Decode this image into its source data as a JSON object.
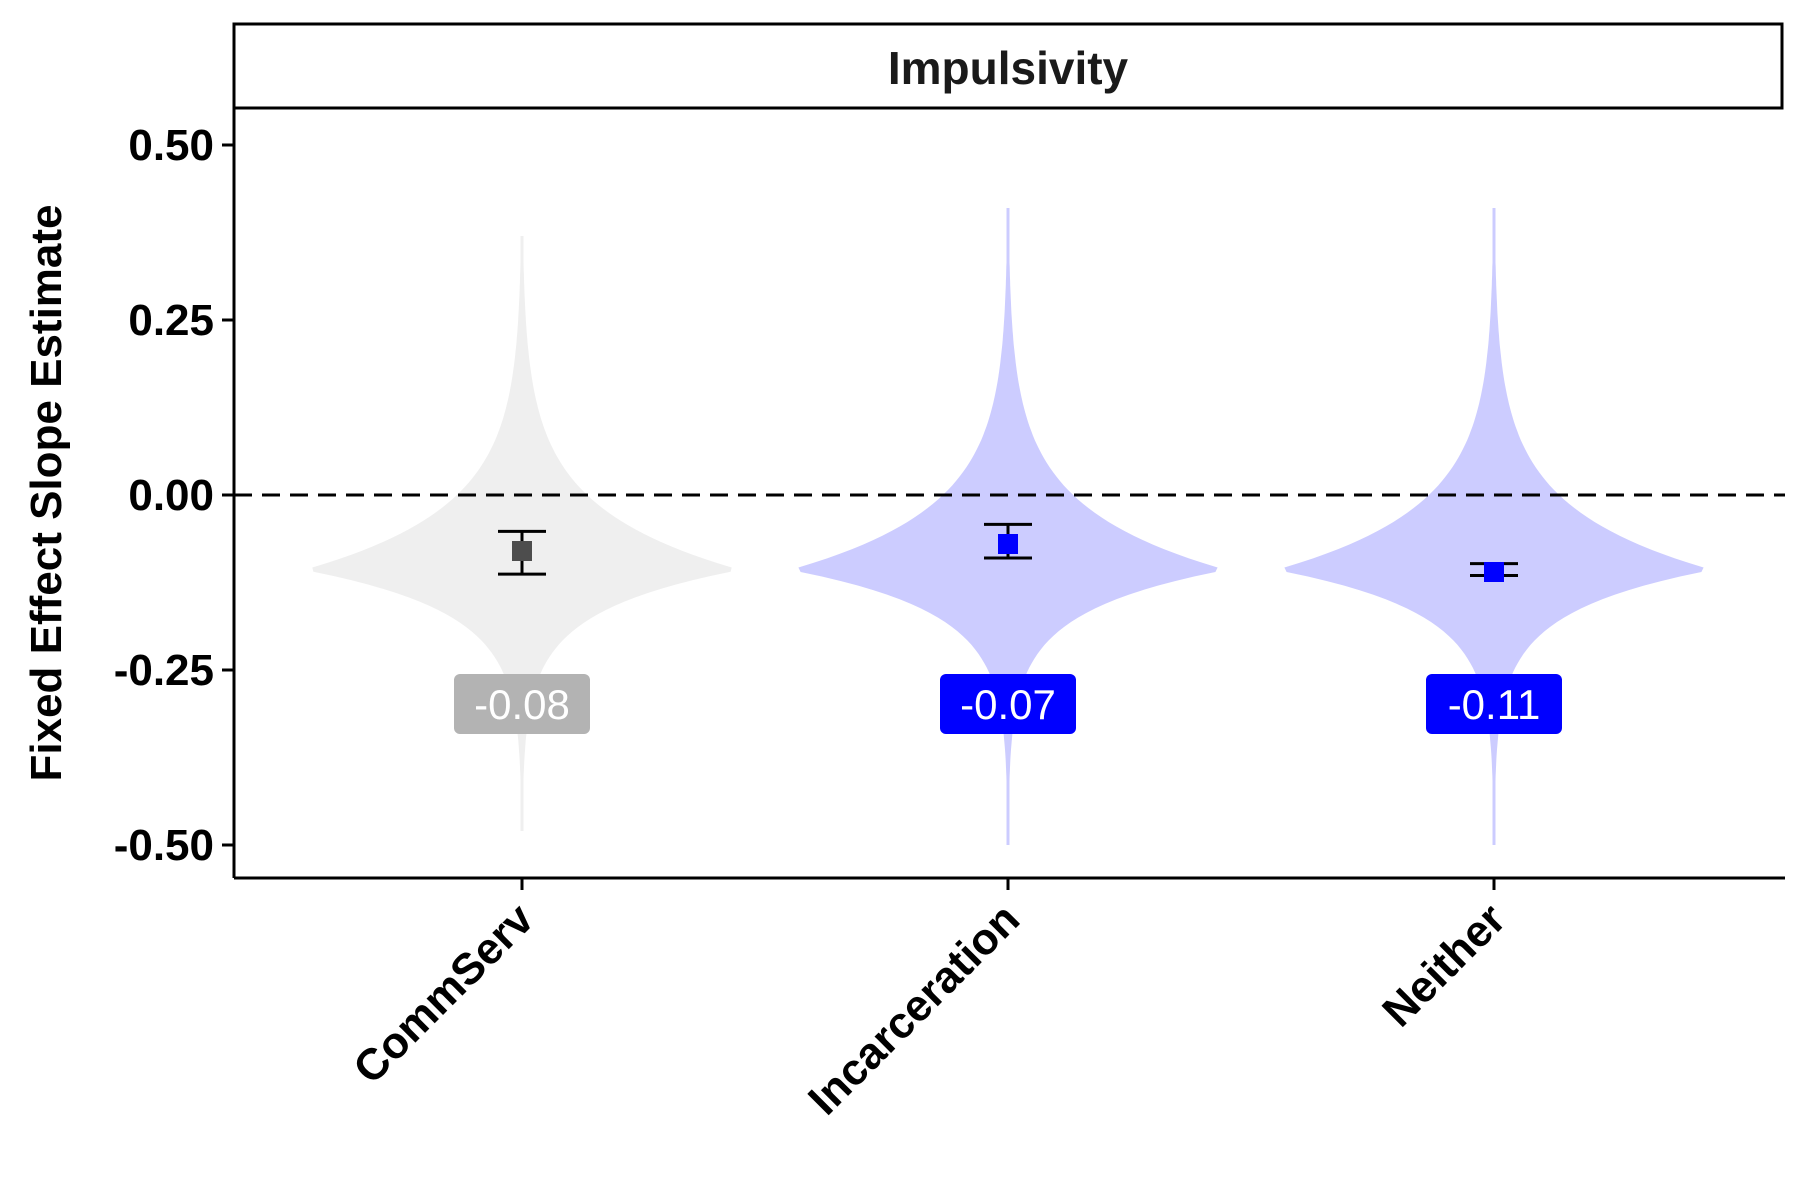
{
  "chart_data": {
    "type": "violin",
    "panel_title": "Impulsivity",
    "title": "",
    "xlabel": "",
    "ylabel": "Fixed Effect Slope Estimate",
    "ylim": [
      -0.55,
      0.55
    ],
    "yticks": [
      0.5,
      0.25,
      0.0,
      -0.25,
      -0.5
    ],
    "ytick_labels": [
      "0.50",
      "0.25",
      "0.00",
      "-0.25",
      "-0.50"
    ],
    "reference_line": {
      "y": 0.0,
      "style": "dashed"
    },
    "categories": [
      "CommServ",
      "Incarceration",
      "Neither"
    ],
    "points": [
      {
        "category": "CommServ",
        "estimate": -0.08,
        "ci_low": -0.113,
        "ci_high": -0.052,
        "label": "-0.08",
        "point_color": "#4d4d4d",
        "violin_color": "#efefef",
        "label_color": "#b3b3b3",
        "violin_min": -0.48,
        "violin_max": 0.37,
        "violin_mode": -0.107
      },
      {
        "category": "Incarceration",
        "estimate": -0.07,
        "ci_low": -0.09,
        "ci_high": -0.042,
        "label": "-0.07",
        "point_color": "#0000ff",
        "violin_color": "#ccccff",
        "label_color": "#0000ff",
        "violin_min": -0.5,
        "violin_max": 0.41,
        "violin_mode": -0.107
      },
      {
        "category": "Neither",
        "estimate": -0.11,
        "ci_low": -0.115,
        "ci_high": -0.098,
        "label": "-0.11",
        "point_color": "#0000ff",
        "violin_color": "#ccccff",
        "label_color": "#0000ff",
        "violin_min": -0.5,
        "violin_max": 0.41,
        "violin_mode": -0.107
      }
    ]
  }
}
